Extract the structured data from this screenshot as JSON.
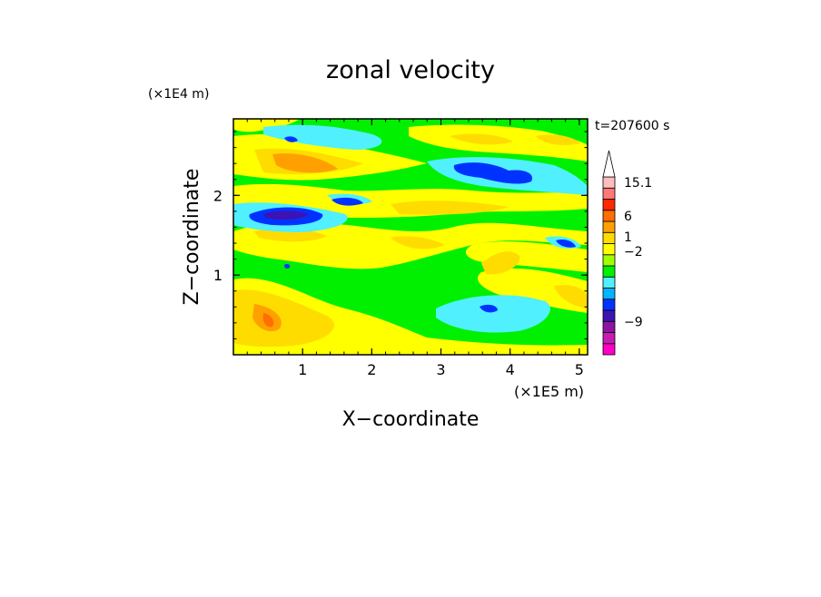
{
  "chart_data": {
    "type": "heatmap",
    "title": "zonal velocity",
    "xlabel": "X−coordinate",
    "ylabel": "Z−coordinate",
    "x_scale_label": "(×1E5 m)",
    "y_scale_label": "(×1E4 m)",
    "time_label": "t=207600 s",
    "xlim": [
      0,
      5.12
    ],
    "ylim": [
      0,
      2.96
    ],
    "x_ticks": [
      {
        "value": 1,
        "label": "1"
      },
      {
        "value": 2,
        "label": "2"
      },
      {
        "value": 3,
        "label": "3"
      },
      {
        "value": 4,
        "label": "4"
      },
      {
        "value": 5,
        "label": "5"
      }
    ],
    "y_ticks": [
      {
        "value": 1,
        "label": "1"
      },
      {
        "value": 2,
        "label": "2"
      }
    ],
    "colorbar": {
      "colors": [
        "#ff00c8",
        "#c81ab4",
        "#8c14a0",
        "#3c14b4",
        "#0032ff",
        "#00b4ff",
        "#50f0ff",
        "#00f000",
        "#a0ff00",
        "#ffff00",
        "#ffdc00",
        "#ffa000",
        "#ff6e00",
        "#ff2800",
        "#ff7878",
        "#ffbebe",
        "#ffffff"
      ],
      "tick_labels": [
        {
          "label": "15.1",
          "level": 15.5
        },
        {
          "label": "6",
          "level": 12.5
        },
        {
          "label": "1",
          "level": 10.6
        },
        {
          "label": "−2",
          "level": 9.3
        },
        {
          "label": "−9",
          "level": 3.0
        }
      ]
    }
  }
}
